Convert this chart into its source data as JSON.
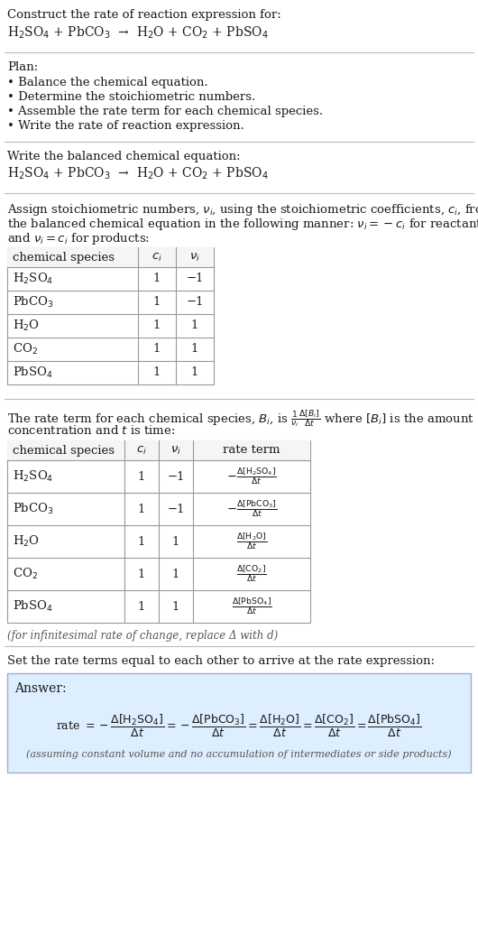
{
  "bg_color": "#ffffff",
  "text_color": "#1a1a1a",
  "gray_text": "#555555",
  "answer_bg": "#ddeeff",
  "answer_border": "#aaaacc",
  "title_line1": "Construct the rate of reaction expression for:",
  "reaction_equation": "H$_2$SO$_4$ + PbCO$_3$  →  H$_2$O + CO$_2$ + PbSO$_4$",
  "plan_header": "Plan:",
  "plan_items": [
    "• Balance the chemical equation.",
    "• Determine the stoichiometric numbers.",
    "• Assemble the rate term for each chemical species.",
    "• Write the rate of reaction expression."
  ],
  "balanced_header": "Write the balanced chemical equation:",
  "balanced_eq": "H$_2$SO$_4$ + PbCO$_3$  →  H$_2$O + CO$_2$ + PbSO$_4$",
  "stoich_intro1": "Assign stoichiometric numbers, $\\nu_i$, using the stoichiometric coefficients, $c_i$, from",
  "stoich_intro2": "the balanced chemical equation in the following manner: $\\nu_i = -c_i$ for reactants",
  "stoich_intro3": "and $\\nu_i = c_i$ for products:",
  "table1_headers": [
    "chemical species",
    "$c_i$",
    "$\\nu_i$"
  ],
  "table1_rows": [
    [
      "H$_2$SO$_4$",
      "1",
      "−1"
    ],
    [
      "PbCO$_3$",
      "1",
      "−1"
    ],
    [
      "H$_2$O",
      "1",
      "1"
    ],
    [
      "CO$_2$",
      "1",
      "1"
    ],
    [
      "PbSO$_4$",
      "1",
      "1"
    ]
  ],
  "rate_intro1": "The rate term for each chemical species, $B_i$, is $\\frac{1}{\\nu_i}\\frac{\\Delta[B_i]}{\\Delta t}$ where $[B_i]$ is the amount",
  "rate_intro2": "concentration and $t$ is time:",
  "table2_headers": [
    "chemical species",
    "$c_i$",
    "$\\nu_i$",
    "rate term"
  ],
  "table2_rows": [
    [
      "H$_2$SO$_4$",
      "1",
      "−1",
      "$-\\frac{\\Delta[\\mathrm{H_2SO_4}]}{\\Delta t}$"
    ],
    [
      "PbCO$_3$",
      "1",
      "−1",
      "$-\\frac{\\Delta[\\mathrm{PbCO_3}]}{\\Delta t}$"
    ],
    [
      "H$_2$O",
      "1",
      "1",
      "$\\frac{\\Delta[\\mathrm{H_2O}]}{\\Delta t}$"
    ],
    [
      "CO$_2$",
      "1",
      "1",
      "$\\frac{\\Delta[\\mathrm{CO_2}]}{\\Delta t}$"
    ],
    [
      "PbSO$_4$",
      "1",
      "1",
      "$\\frac{\\Delta[\\mathrm{PbSO_4}]}{\\Delta t}$"
    ]
  ],
  "infinitesimal_note": "(for infinitesimal rate of change, replace Δ with d)",
  "set_rate_intro": "Set the rate terms equal to each other to arrive at the rate expression:",
  "answer_label": "Answer:",
  "answer_note": "(assuming constant volume and no accumulation of intermediates or side products)"
}
